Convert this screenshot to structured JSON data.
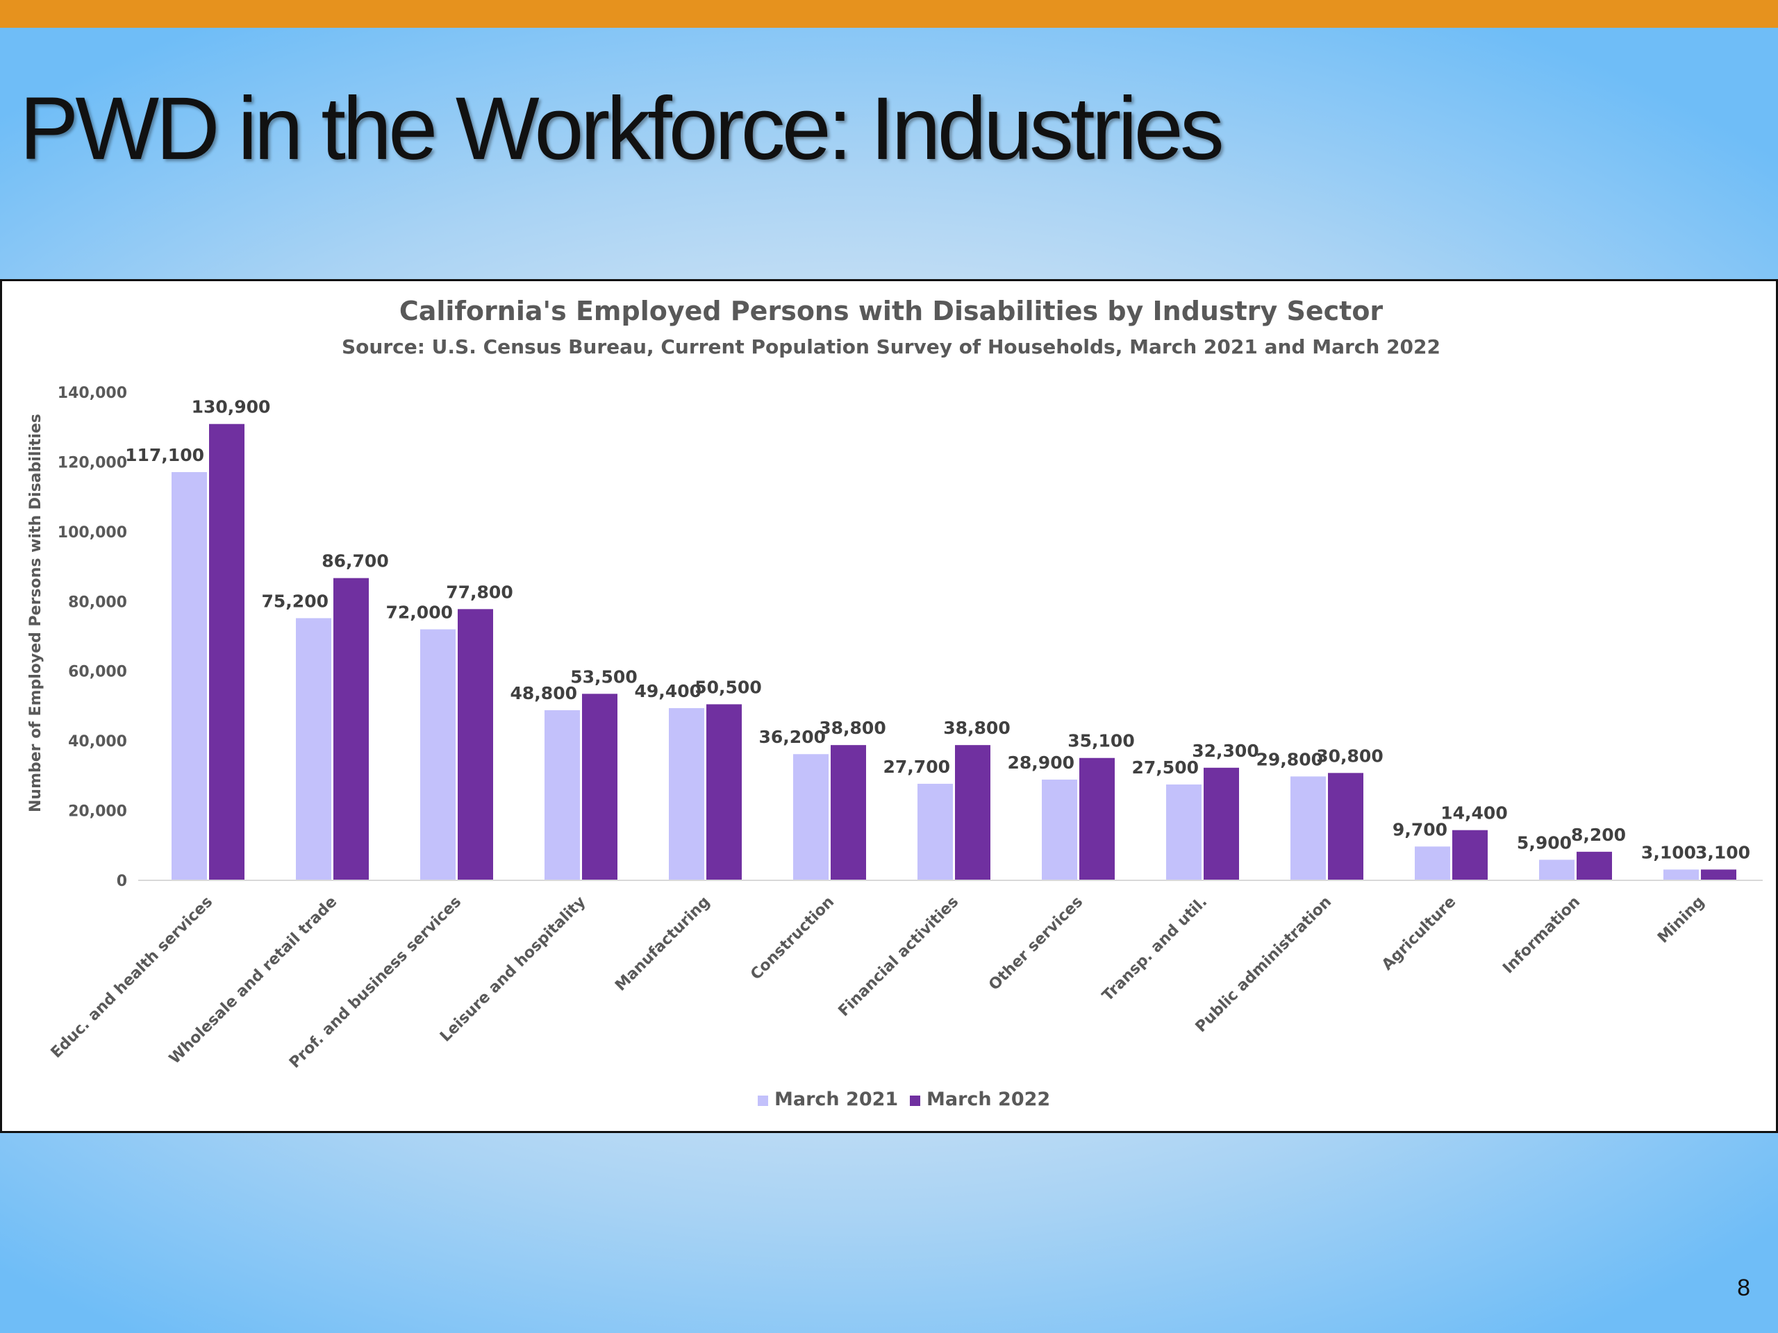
{
  "slide": {
    "title": "PWD in the Workforce: Industries",
    "page_number": "8",
    "accent_bar_color": "#e6921e"
  },
  "chart_data": {
    "type": "bar",
    "title": "California's Employed Persons with Disabilities by Industry Sector",
    "subtitle": "Source: U.S. Census Bureau, Current Population Survey of Households, March 2021 and March 2022",
    "xlabel": "",
    "ylabel": "Number of Employed Persons with Disabilities",
    "ylim": [
      0,
      140000
    ],
    "yticks": [
      0,
      20000,
      40000,
      60000,
      80000,
      100000,
      120000,
      140000
    ],
    "ytick_labels": [
      "0",
      "20,000",
      "40,000",
      "60,000",
      "80,000",
      "100,000",
      "120,000",
      "140,000"
    ],
    "grid": false,
    "legend_position": "bottom",
    "categories": [
      "Educ. and health services",
      "Wholesale and retail trade",
      "Prof. and business services",
      "Leisure and hospitality",
      "Manufacturing",
      "Construction",
      "Financial activities",
      "Other services",
      "Transp. and util.",
      "Public administration",
      "Agriculture",
      "Information",
      "Mining"
    ],
    "series": [
      {
        "name": "March 2021",
        "color": "#c3c1fb",
        "values": [
          117100,
          75200,
          72000,
          48800,
          49400,
          36200,
          27700,
          28900,
          27500,
          29800,
          9700,
          5900,
          3100
        ],
        "labels": [
          "117,100",
          "75,200",
          "72,000",
          "48,800",
          "49,400",
          "36,200",
          "27,700",
          "28,900",
          "27,500",
          "29,800",
          "9,700",
          "5,900",
          "3,100"
        ]
      },
      {
        "name": "March 2022",
        "color": "#7030a0",
        "values": [
          130900,
          86700,
          77800,
          53500,
          50500,
          38800,
          38800,
          35100,
          32300,
          30800,
          14400,
          8200,
          3100
        ],
        "labels": [
          "130,900",
          "86,700",
          "77,800",
          "53,500",
          "50,500",
          "38,800",
          "38,800",
          "35,100",
          "32,300",
          "30,800",
          "14,400",
          "8,200",
          "3,100"
        ]
      }
    ]
  }
}
